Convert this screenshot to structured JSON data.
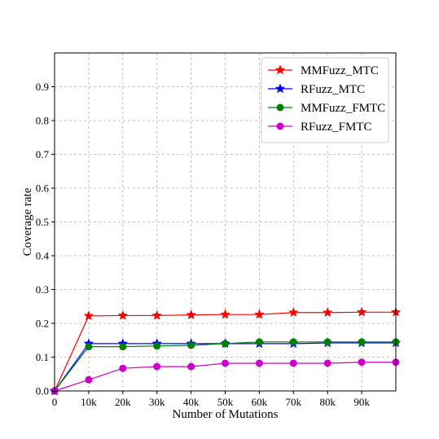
{
  "chart_data": {
    "type": "line",
    "title": "",
    "xlabel": "Number of Mutations",
    "ylabel": "Coverage rate",
    "x": [
      0,
      10000,
      20000,
      30000,
      40000,
      50000,
      60000,
      70000,
      80000,
      90000,
      100000
    ],
    "x_tick_values": [
      0,
      10000,
      20000,
      30000,
      40000,
      50000,
      60000,
      70000,
      80000,
      90000
    ],
    "x_tick_labels": [
      "0",
      "10k",
      "20k",
      "30k",
      "40k",
      "50k",
      "60k",
      "70k",
      "80k",
      "90k"
    ],
    "y_tick_values": [
      0.0,
      0.1,
      0.2,
      0.3,
      0.4,
      0.5,
      0.6,
      0.7,
      0.8,
      0.9
    ],
    "y_tick_labels": [
      "0.0",
      "0.1",
      "0.2",
      "0.3",
      "0.4",
      "0.5",
      "0.6",
      "0.7",
      "0.8",
      "0.9"
    ],
    "xlim": [
      0,
      100000
    ],
    "ylim": [
      0,
      1.0
    ],
    "grid": true,
    "legend_position": "top-right",
    "series": [
      {
        "name": "MMFuzz_MTC",
        "color": "#ff0000",
        "marker": "star",
        "values": [
          0.0,
          0.222,
          0.223,
          0.223,
          0.225,
          0.226,
          0.226,
          0.232,
          0.232,
          0.233,
          0.233
        ]
      },
      {
        "name": "RFuzz_MTC",
        "color": "#0000ff",
        "marker": "star",
        "values": [
          0.0,
          0.14,
          0.14,
          0.14,
          0.14,
          0.14,
          0.14,
          0.14,
          0.142,
          0.142,
          0.142
        ]
      },
      {
        "name": "MMFuzz_FMTC",
        "color": "#008000",
        "marker": "circle",
        "values": [
          0.0,
          0.131,
          0.131,
          0.133,
          0.135,
          0.14,
          0.145,
          0.145,
          0.145,
          0.145,
          0.145
        ]
      },
      {
        "name": "RFuzz_FMTC",
        "color": "#cc00cc",
        "marker": "circle",
        "values": [
          0.0,
          0.033,
          0.067,
          0.072,
          0.072,
          0.082,
          0.082,
          0.082,
          0.082,
          0.085,
          0.085
        ]
      }
    ]
  }
}
